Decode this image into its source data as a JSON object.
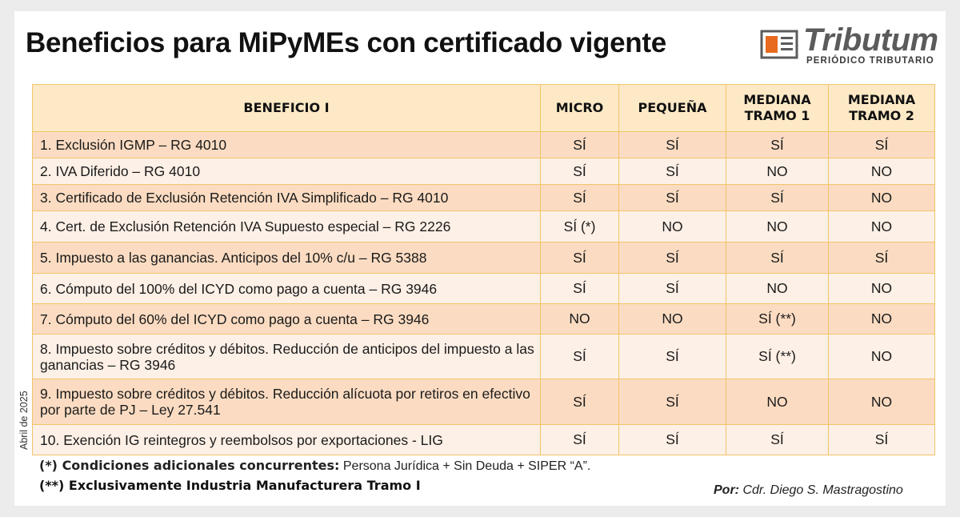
{
  "title": "Beneficios para MiPyMEs con certificado vigente",
  "logo": {
    "name": "Tributum",
    "subtitle": "PERIÓDICO TRIBUTARIO",
    "icon": "newspaper-icon"
  },
  "side_date": "Abril de 2025",
  "table": {
    "headers": [
      "BENEFICIO I",
      "MICRO",
      "PEQUEÑA",
      "MEDIANA TRAMO 1",
      "MEDIANA TRAMO 2"
    ],
    "rows": [
      {
        "beneficio": "1. Exclusión IGMP – RG 4010",
        "micro": "SÍ",
        "pequena": "SÍ",
        "mediana1": "SÍ",
        "mediana2": "SÍ"
      },
      {
        "beneficio": "2. IVA Diferido – RG 4010",
        "micro": "SÍ",
        "pequena": "SÍ",
        "mediana1": "NO",
        "mediana2": "NO"
      },
      {
        "beneficio": "3. Certificado de Exclusión Retención IVA Simplificado – RG 4010",
        "micro": "SÍ",
        "pequena": "SÍ",
        "mediana1": "SÍ",
        "mediana2": "NO"
      },
      {
        "beneficio": "4. Cert. de Exclusión Retención IVA Supuesto especial – RG 2226",
        "micro": "SÍ (*)",
        "pequena": "NO",
        "mediana1": "NO",
        "mediana2": "NO"
      },
      {
        "beneficio": "5. Impuesto a las ganancias. Anticipos del 10% c/u – RG 5388",
        "micro": "SÍ",
        "pequena": "SÍ",
        "mediana1": "SÍ",
        "mediana2": "SÍ"
      },
      {
        "beneficio": "6. Cómputo del 100% del ICYD como pago a cuenta – RG 3946",
        "micro": "SÍ",
        "pequena": "SÍ",
        "mediana1": "NO",
        "mediana2": "NO"
      },
      {
        "beneficio": "7. Cómputo del 60% del ICYD como pago a cuenta – RG 3946",
        "micro": "NO",
        "pequena": "NO",
        "mediana1": "SÍ (**)",
        "mediana2": "NO"
      },
      {
        "beneficio": "8. Impuesto sobre créditos y débitos. Reducción de anticipos del impuesto a las ganancias – RG 3946",
        "micro": "SÍ",
        "pequena": "SÍ",
        "mediana1": "SÍ (**)",
        "mediana2": "NO"
      },
      {
        "beneficio": "9. Impuesto sobre créditos y débitos. Reducción alícuota por retiros en efectivo por parte de PJ – Ley 27.541",
        "micro": "SÍ",
        "pequena": "SÍ",
        "mediana1": "NO",
        "mediana2": "NO"
      },
      {
        "beneficio": "10. Exención IG reintegros y reembolsos por exportaciones - LIG",
        "micro": "SÍ",
        "pequena": "SÍ",
        "mediana1": "SÍ",
        "mediana2": "SÍ"
      }
    ]
  },
  "footnotes": {
    "note1_label": "(*) Condiciones adicionales concurrentes:",
    "note1_text": " Persona Jurídica + Sin Deuda + SIPER “A”.",
    "note2": "(**) Exclusivamente Industria Manufacturera Tramo I"
  },
  "author": {
    "label": "Por:",
    "name": " Cdr. Diego S. Mastragostino"
  },
  "colors": {
    "header_bg": "#fde9c6",
    "row_odd_bg": "#fbdcc2",
    "row_even_bg": "#fdf0e6",
    "border": "#f2c468"
  }
}
